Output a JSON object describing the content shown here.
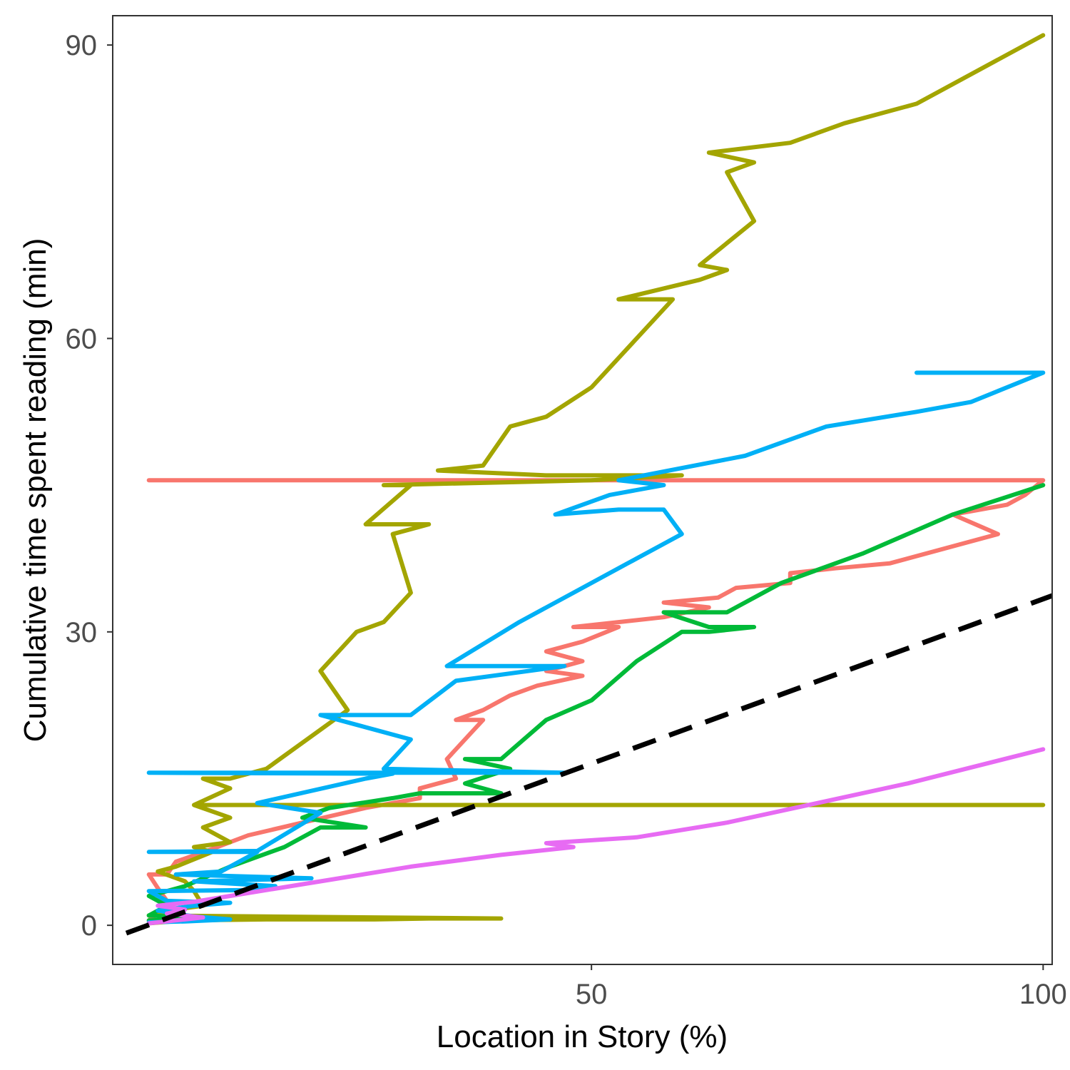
{
  "chart_data": {
    "type": "line",
    "title": "",
    "xlabel": "Location in Story (%)",
    "ylabel": "Cumulative time spent reading (min)",
    "xlim": [
      -3,
      101
    ],
    "ylim": [
      -4,
      93
    ],
    "x_ticks": [
      50,
      100
    ],
    "x_tick_labels": [
      "50",
      "100"
    ],
    "y_ticks": [
      0,
      30,
      60,
      90
    ],
    "y_tick_labels": [
      "0",
      "30",
      "60",
      "90"
    ],
    "grid": false,
    "legend": "none",
    "reference_line": {
      "style": "dashed",
      "color": "#000000",
      "x": [
        -1.5,
        101
      ],
      "y": [
        -0.8,
        33.7
      ]
    },
    "series": [
      {
        "color": "#F8766D",
        "points": [
          [
            1,
            0.5
          ],
          [
            2,
            1.2
          ],
          [
            3,
            2.5
          ],
          [
            2,
            3.8
          ],
          [
            1,
            5.2
          ],
          [
            3,
            5.2
          ],
          [
            4,
            6.5
          ],
          [
            8,
            7.8
          ],
          [
            12,
            9.2
          ],
          [
            18,
            10.5
          ],
          [
            25,
            12
          ],
          [
            31,
            13
          ],
          [
            31,
            14
          ],
          [
            35,
            15
          ],
          [
            34,
            17
          ],
          [
            37,
            20
          ],
          [
            38,
            21
          ],
          [
            35,
            21
          ],
          [
            38,
            22
          ],
          [
            41,
            23.5
          ],
          [
            44,
            24.5
          ],
          [
            49,
            25.5
          ],
          [
            45,
            26
          ],
          [
            49,
            27
          ],
          [
            45,
            28
          ],
          [
            49,
            29
          ],
          [
            53,
            30.5
          ],
          [
            48,
            30.5
          ],
          [
            53,
            31
          ],
          [
            58,
            31.5
          ],
          [
            63,
            32.5
          ],
          [
            58,
            33
          ],
          [
            64,
            33.5
          ],
          [
            66,
            34.5
          ],
          [
            72,
            35
          ],
          [
            72,
            36
          ],
          [
            77,
            36.5
          ],
          [
            83,
            37
          ],
          [
            95,
            40
          ],
          [
            90,
            42
          ],
          [
            96,
            43
          ],
          [
            98,
            44
          ],
          [
            100,
            45.5
          ],
          [
            1,
            45.5
          ]
        ]
      },
      {
        "color": "#A3A500",
        "points": [
          [
            1,
            0.2
          ],
          [
            5,
            0.5
          ],
          [
            14,
            0.6
          ],
          [
            26,
            0.6
          ],
          [
            32,
            0.7
          ],
          [
            40,
            0.7
          ],
          [
            1,
            1
          ],
          [
            3,
            1.5
          ],
          [
            7,
            2
          ],
          [
            6,
            3.5
          ],
          [
            5,
            4.5
          ],
          [
            2,
            5.5
          ],
          [
            4,
            6
          ],
          [
            8,
            7.5
          ],
          [
            6,
            8
          ],
          [
            10,
            8.5
          ],
          [
            7,
            10
          ],
          [
            10,
            11
          ],
          [
            6,
            12.3
          ],
          [
            40,
            12.3
          ],
          [
            80,
            12.3
          ],
          [
            95,
            12.3
          ],
          [
            100,
            12.3
          ],
          [
            6,
            12.3
          ],
          [
            10,
            14
          ],
          [
            7,
            15
          ],
          [
            10,
            15
          ],
          [
            14,
            16
          ],
          [
            20,
            20
          ],
          [
            23,
            22
          ],
          [
            20,
            26
          ],
          [
            23,
            29
          ],
          [
            24,
            30
          ],
          [
            27,
            31
          ],
          [
            30,
            34
          ],
          [
            29,
            37
          ],
          [
            28,
            40
          ],
          [
            32,
            41
          ],
          [
            25,
            41
          ],
          [
            30,
            45
          ],
          [
            27,
            45
          ],
          [
            50,
            45.5
          ],
          [
            60,
            46
          ],
          [
            45,
            46
          ],
          [
            33,
            46.5
          ],
          [
            38,
            47
          ],
          [
            41,
            51
          ],
          [
            45,
            52
          ],
          [
            50,
            55
          ],
          [
            53,
            58
          ],
          [
            59,
            64
          ],
          [
            53,
            64
          ],
          [
            62,
            66
          ],
          [
            65,
            67
          ],
          [
            62,
            67.5
          ],
          [
            68,
            72
          ],
          [
            65,
            77
          ],
          [
            68,
            78
          ],
          [
            63,
            79
          ],
          [
            72,
            80
          ],
          [
            78,
            82
          ],
          [
            86,
            84
          ],
          [
            100,
            91
          ]
        ]
      },
      {
        "color": "#00BA38",
        "points": [
          [
            1,
            0.5
          ],
          [
            5,
            0.6
          ],
          [
            10,
            0.6
          ],
          [
            1,
            1
          ],
          [
            3,
            2
          ],
          [
            1,
            3
          ],
          [
            5,
            4
          ],
          [
            10,
            6
          ],
          [
            16,
            8
          ],
          [
            20,
            10
          ],
          [
            25,
            10
          ],
          [
            18,
            11
          ],
          [
            21,
            12
          ],
          [
            28,
            13
          ],
          [
            31,
            13.5
          ],
          [
            40,
            13.5
          ],
          [
            36,
            14.5
          ],
          [
            41,
            16
          ],
          [
            36,
            17
          ],
          [
            40,
            17
          ],
          [
            45,
            21
          ],
          [
            50,
            23
          ],
          [
            55,
            27
          ],
          [
            60,
            30
          ],
          [
            63,
            30
          ],
          [
            68,
            30.5
          ],
          [
            63,
            30.5
          ],
          [
            58,
            32
          ],
          [
            65,
            32
          ],
          [
            71,
            35
          ],
          [
            80,
            38
          ],
          [
            90,
            42
          ],
          [
            100,
            45
          ]
        ]
      },
      {
        "color": "#00B0F6",
        "points": [
          [
            1,
            0.3
          ],
          [
            5,
            0.4
          ],
          [
            10,
            0.6
          ],
          [
            6,
            0.9
          ],
          [
            2,
            1.5
          ],
          [
            6,
            2
          ],
          [
            10,
            2.3
          ],
          [
            3,
            2.5
          ],
          [
            1,
            3.5
          ],
          [
            12,
            3.6
          ],
          [
            15,
            4
          ],
          [
            6,
            4.5
          ],
          [
            19,
            4.8
          ],
          [
            4,
            5.2
          ],
          [
            9,
            5.5
          ],
          [
            13,
            7.5
          ],
          [
            1,
            7.5
          ],
          [
            13,
            7.6
          ],
          [
            20,
            11.5
          ],
          [
            13,
            12.5
          ],
          [
            25,
            15
          ],
          [
            28,
            15.5
          ],
          [
            1,
            15.6
          ],
          [
            47,
            15.6
          ],
          [
            27,
            16
          ],
          [
            30,
            19
          ],
          [
            20,
            21.5
          ],
          [
            30,
            21.5
          ],
          [
            35,
            25
          ],
          [
            47,
            26.5
          ],
          [
            34,
            26.5
          ],
          [
            42,
            31
          ],
          [
            48,
            34
          ],
          [
            54,
            37
          ],
          [
            60,
            40
          ],
          [
            58,
            42.5
          ],
          [
            53,
            42.5
          ],
          [
            46,
            42
          ],
          [
            52,
            44
          ],
          [
            58,
            45
          ],
          [
            53,
            45.5
          ],
          [
            67,
            48
          ],
          [
            76,
            51
          ],
          [
            86,
            52.5
          ],
          [
            92,
            53.5
          ],
          [
            100,
            56.5
          ],
          [
            86,
            56.5
          ]
        ]
      },
      {
        "color": "#E76BF3",
        "points": [
          [
            1,
            0.2
          ],
          [
            4,
            0.5
          ],
          [
            7,
            0.8
          ],
          [
            3,
            1.2
          ],
          [
            5,
            1.6
          ],
          [
            2,
            2
          ],
          [
            6,
            2.4
          ],
          [
            10,
            3
          ],
          [
            20,
            4.5
          ],
          [
            30,
            6
          ],
          [
            40,
            7.2
          ],
          [
            48,
            8
          ],
          [
            45,
            8.4
          ],
          [
            55,
            9
          ],
          [
            65,
            10.5
          ],
          [
            75,
            12.5
          ],
          [
            85,
            14.5
          ],
          [
            100,
            18
          ]
        ]
      }
    ]
  }
}
